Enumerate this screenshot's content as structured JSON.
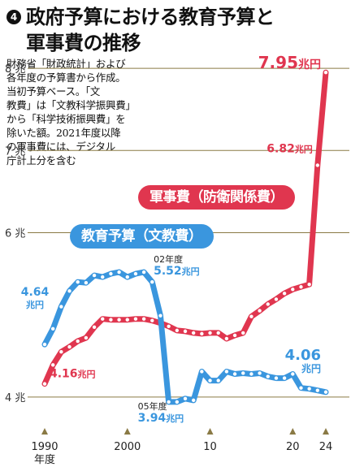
{
  "title": {
    "badge": "4",
    "line1": "政府予算における教育予算と",
    "line2": "軍事費の推移"
  },
  "note": "財務省「財政統計」および\n各年度の予算書から作成。\n当初予算ベース。「文\n教費」は「文教科学振興費」\nから「科学技術振興費」を\n除いた額。2021年度以降\nの軍事費には、デジタル\n庁計上分を含む",
  "colors": {
    "military": "#e0364f",
    "education": "#3a96de",
    "grid": "#8a7a45",
    "tick": "#8a7a45"
  },
  "chart_data": {
    "type": "line",
    "ylim": [
      3.85,
      8.1
    ],
    "xlim": [
      1990,
      2025
    ],
    "y_ticks": [
      {
        "value": 4,
        "label": "4 兆"
      },
      {
        "value": 6,
        "label": "6 兆"
      },
      {
        "value": 7,
        "label": "7 兆"
      },
      {
        "value": 8,
        "label": "8 兆"
      }
    ],
    "x_ticks": [
      {
        "value": 1990,
        "label": "1990",
        "sublabel": "年度"
      },
      {
        "value": 2000,
        "label": "2000",
        "sublabel": ""
      },
      {
        "value": 2010,
        "label": "10",
        "sublabel": ""
      },
      {
        "value": 2020,
        "label": "20",
        "sublabel": ""
      },
      {
        "value": 2024,
        "label": "24",
        "sublabel": ""
      }
    ],
    "series": [
      {
        "key": "military",
        "name": "軍事費（防衛関係費）",
        "x": [
          1990,
          1991,
          1992,
          1993,
          1994,
          1995,
          1996,
          1997,
          1998,
          1999,
          2000,
          2001,
          2002,
          2003,
          2004,
          2005,
          2006,
          2007,
          2008,
          2009,
          2010,
          2011,
          2012,
          2013,
          2014,
          2015,
          2016,
          2017,
          2018,
          2019,
          2020,
          2021,
          2022,
          2023,
          2024
        ],
        "values": [
          4.16,
          4.39,
          4.55,
          4.61,
          4.68,
          4.72,
          4.85,
          4.95,
          4.94,
          4.94,
          4.94,
          4.95,
          4.95,
          4.93,
          4.9,
          4.86,
          4.81,
          4.8,
          4.78,
          4.77,
          4.78,
          4.78,
          4.71,
          4.75,
          4.78,
          4.98,
          5.05,
          5.13,
          5.19,
          5.26,
          5.31,
          5.34,
          5.37,
          6.82,
          7.95
        ]
      },
      {
        "key": "education",
        "name": "教育予算（文教費）",
        "x": [
          1990,
          1991,
          1992,
          1993,
          1994,
          1995,
          1996,
          1997,
          1998,
          1999,
          2000,
          2001,
          2002,
          2003,
          2004,
          2005,
          2006,
          2007,
          2008,
          2009,
          2010,
          2011,
          2012,
          2013,
          2014,
          2015,
          2016,
          2017,
          2018,
          2019,
          2020,
          2021,
          2022,
          2023,
          2024
        ],
        "values": [
          4.64,
          4.83,
          5.1,
          5.29,
          5.4,
          5.39,
          5.48,
          5.46,
          5.5,
          5.52,
          5.46,
          5.5,
          5.52,
          5.4,
          4.99,
          3.94,
          3.94,
          3.98,
          3.96,
          4.31,
          4.2,
          4.2,
          4.31,
          4.28,
          4.29,
          4.28,
          4.29,
          4.25,
          4.23,
          4.23,
          4.28,
          4.11,
          4.1,
          4.08,
          4.06
        ]
      }
    ],
    "annotations": [
      {
        "series": "military",
        "x": 1990,
        "value_label": "4.16",
        "unit_label": "兆円"
      },
      {
        "series": "military",
        "x": 2023,
        "value_label": "6.82",
        "unit_label": "兆円"
      },
      {
        "series": "military",
        "x": 2024,
        "value_label": "7.95",
        "unit_label": "兆円"
      },
      {
        "series": "education",
        "x": 1990,
        "value_label": "4.64",
        "unit_label": "兆円"
      },
      {
        "series": "education",
        "x": 2002,
        "year_label": "02年度",
        "value_label": "5.52",
        "unit_label": "兆円"
      },
      {
        "series": "education",
        "x": 2005,
        "year_label": "05年度",
        "value_label": "3.94",
        "unit_label": "兆円"
      },
      {
        "series": "education",
        "x": 2024,
        "value_label": "4.06",
        "unit_label": "兆円"
      }
    ]
  }
}
